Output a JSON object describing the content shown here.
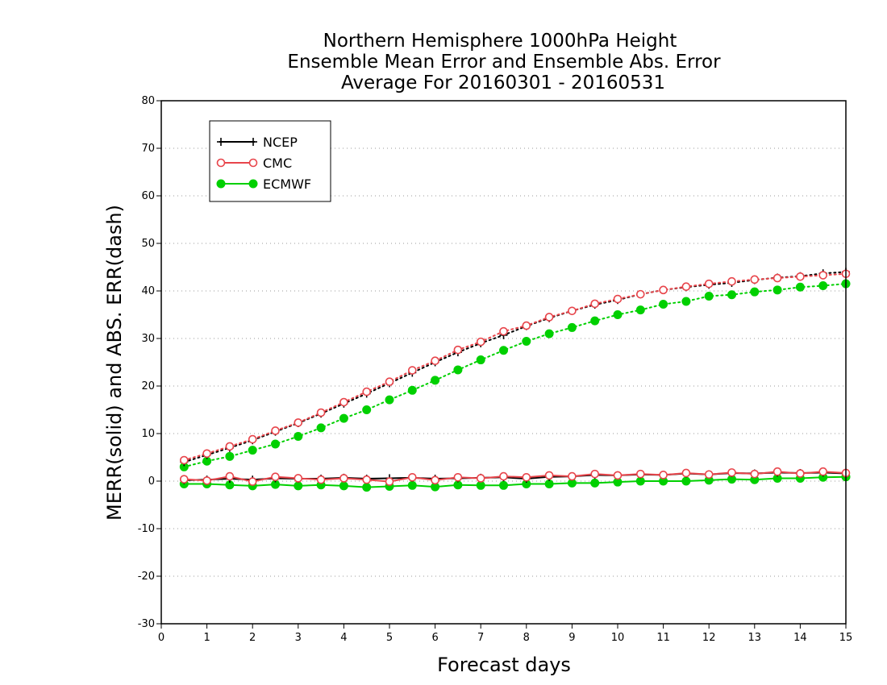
{
  "chart_data": {
    "type": "line",
    "title_lines": [
      "Northern Hemisphere 1000hPa Height",
      "Ensemble Mean Error and Ensemble Abs. Error",
      "Average For 20160301 - 20160531"
    ],
    "xlabel": "Forecast days",
    "ylabel": "MERR(solid) and ABS. ERR(dash)",
    "xlim": [
      0,
      15
    ],
    "ylim": [
      -30,
      80
    ],
    "x_ticks": [
      0,
      1,
      2,
      3,
      4,
      5,
      6,
      7,
      8,
      9,
      10,
      11,
      12,
      13,
      14,
      15
    ],
    "y_ticks": [
      -30,
      -20,
      -10,
      0,
      10,
      20,
      30,
      40,
      50,
      60,
      70,
      80
    ],
    "grid": "horizontal-dotted",
    "legend_position": "top-left",
    "x": [
      0.5,
      1,
      1.5,
      2,
      2.5,
      3,
      3.5,
      4,
      4.5,
      5,
      5.5,
      6,
      6.5,
      7,
      7.5,
      8,
      8.5,
      9,
      9.5,
      10,
      10.5,
      11,
      11.5,
      12,
      12.5,
      13,
      13.5,
      14,
      14.5,
      15
    ],
    "series": [
      {
        "name": "NCEP",
        "color": "#000000",
        "marker": "plus",
        "merr": [
          0.2,
          0.3,
          0.5,
          0.3,
          0.6,
          0.5,
          0.5,
          0.7,
          0.5,
          0.6,
          0.7,
          0.5,
          0.6,
          0.7,
          0.8,
          0.5,
          0.9,
          1.0,
          1.3,
          1.2,
          1.4,
          1.3,
          1.6,
          1.4,
          1.7,
          1.6,
          1.8,
          1.7,
          1.8,
          1.6
        ],
        "abs_err": [
          4.0,
          5.5,
          7.0,
          8.6,
          10.4,
          12.2,
          14.2,
          16.3,
          18.4,
          20.6,
          22.8,
          25.0,
          27.1,
          29.0,
          30.7,
          32.6,
          34.3,
          35.8,
          37.1,
          38.1,
          39.3,
          40.2,
          40.8,
          41.3,
          41.7,
          42.3,
          42.8,
          43.1,
          43.7,
          44.0
        ]
      },
      {
        "name": "CMC",
        "color": "#e8454b",
        "marker": "open-circle",
        "merr": [
          0.4,
          0.1,
          1.0,
          -0.1,
          0.9,
          0.6,
          0.3,
          0.6,
          0.3,
          -0.1,
          0.8,
          0.2,
          0.8,
          0.6,
          1.0,
          0.8,
          1.2,
          1.0,
          1.5,
          1.2,
          1.5,
          1.3,
          1.7,
          1.4,
          1.8,
          1.5,
          2.0,
          1.6,
          2.0,
          1.7
        ],
        "abs_err": [
          4.4,
          5.8,
          7.3,
          8.8,
          10.6,
          12.3,
          14.4,
          16.6,
          18.8,
          20.9,
          23.3,
          25.3,
          27.6,
          29.3,
          31.5,
          32.7,
          34.5,
          35.8,
          37.3,
          38.3,
          39.3,
          40.2,
          40.9,
          41.5,
          42.0,
          42.4,
          42.7,
          43.0,
          43.3,
          43.6
        ]
      },
      {
        "name": "ECMWF",
        "color": "#00d000",
        "marker": "filled-circle",
        "merr": [
          -0.6,
          -0.6,
          -0.8,
          -1.0,
          -0.7,
          -1.0,
          -0.8,
          -1.0,
          -1.3,
          -1.1,
          -0.9,
          -1.2,
          -0.8,
          -0.9,
          -0.9,
          -0.6,
          -0.6,
          -0.4,
          -0.4,
          -0.2,
          0.0,
          0.0,
          0.0,
          0.2,
          0.4,
          0.3,
          0.6,
          0.6,
          0.8,
          0.9
        ],
        "abs_err": [
          3.0,
          4.2,
          5.2,
          6.5,
          7.8,
          9.4,
          11.2,
          13.2,
          15.0,
          17.1,
          19.1,
          21.2,
          23.4,
          25.5,
          27.5,
          29.4,
          31.0,
          32.3,
          33.7,
          35.0,
          36.0,
          37.2,
          37.8,
          38.9,
          39.2,
          39.8,
          40.2,
          40.8,
          41.1,
          41.5
        ]
      }
    ]
  }
}
